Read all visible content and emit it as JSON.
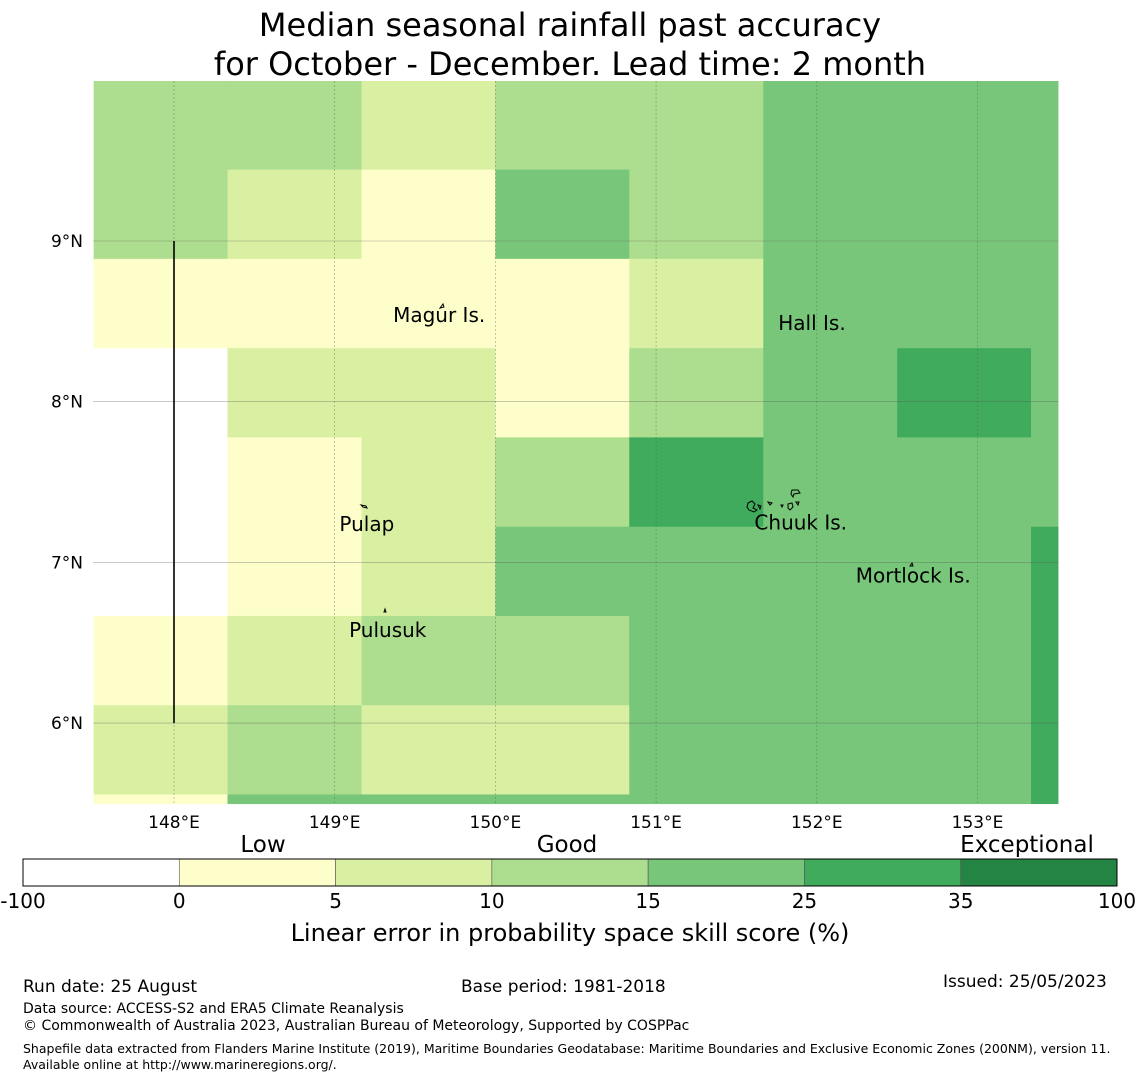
{
  "title": {
    "line1": "Median seasonal rainfall past accuracy",
    "line2": "for October - December. Lead time: 2 month"
  },
  "map": {
    "lon_range": [
      147.5,
      153.5
    ],
    "lat_range": [
      5.5,
      10.0
    ],
    "x_ticks": [
      "148°E",
      "149°E",
      "150°E",
      "151°E",
      "152°E",
      "153°E"
    ],
    "y_ticks": [
      "9°N",
      "8°N",
      "7°N",
      "6°N"
    ],
    "grid": true,
    "class_colors": [
      "#ffffff",
      "#fefecb",
      "#d9f0a3",
      "#addd8e",
      "#78c679",
      "#41ab5d",
      "#238443"
    ],
    "grid_cells": {
      "cols": 8,
      "col_lon_edges": [
        147.5,
        148.333,
        149.167,
        150.0,
        150.833,
        151.667,
        152.5,
        153.333,
        153.5
      ],
      "row_lat_edges": [
        10.0,
        9.444,
        8.889,
        8.333,
        7.778,
        7.222,
        6.667,
        6.111,
        5.556,
        5.5
      ],
      "classes_by_row": [
        [
          3,
          3,
          2,
          3,
          3,
          4,
          4,
          4
        ],
        [
          3,
          2,
          1,
          4,
          3,
          4,
          4,
          4
        ],
        [
          1,
          1,
          1,
          1,
          2,
          4,
          4,
          4
        ],
        [
          0,
          2,
          2,
          1,
          3,
          4,
          5,
          4
        ],
        [
          0,
          1,
          2,
          3,
          5,
          4,
          4,
          4
        ],
        [
          0,
          1,
          2,
          4,
          4,
          4,
          4,
          5
        ],
        [
          1,
          2,
          3,
          3,
          4,
          4,
          4,
          5
        ],
        [
          2,
          3,
          2,
          2,
          4,
          4,
          4,
          5
        ],
        [
          1,
          4,
          4,
          4,
          4,
          4,
          4,
          5
        ]
      ]
    },
    "places": [
      {
        "name": "Magur Is.",
        "lon": 149.65,
        "lat": 8.53
      },
      {
        "name": "Hall Is.",
        "lon": 151.97,
        "lat": 8.48
      },
      {
        "name": "Pulap",
        "lon": 149.2,
        "lat": 7.23
      },
      {
        "name": "Chuuk Is.",
        "lon": 151.9,
        "lat": 7.24
      },
      {
        "name": "Mortlock Is.",
        "lon": 152.6,
        "lat": 6.91
      },
      {
        "name": "Pulusuk",
        "lon": 149.33,
        "lat": 6.57
      }
    ],
    "boundary_line": {
      "lon": 148.0,
      "lat_from": 9.0,
      "lat_to": 6.0
    }
  },
  "legend": {
    "category_labels": [
      "Low",
      "Good",
      "Exceptional"
    ],
    "bins": [
      "-100",
      "0",
      "5",
      "10",
      "15",
      "25",
      "35",
      "100"
    ],
    "label": "Linear error in probability space skill score (%)"
  },
  "footer": {
    "run_date": "Run date: 25 August",
    "base_period": "Base period: 1981-2018",
    "issued": "Issued: 25/05/2023",
    "data_source": "Data source: ACCESS-S2 and ERA5 Climate Reanalysis",
    "copyright": "© Commonwealth of Australia 2023, Australian Bureau of Meteorology, Supported by COSPPac",
    "shapefile": "Shapefile data extracted from Flanders Marine Institute (2019), Maritime Boundaries Geodatabase: Maritime Boundaries and Exclusive Economic Zones (200NM), version 11. Available online at http://www.marineregions.org/."
  }
}
